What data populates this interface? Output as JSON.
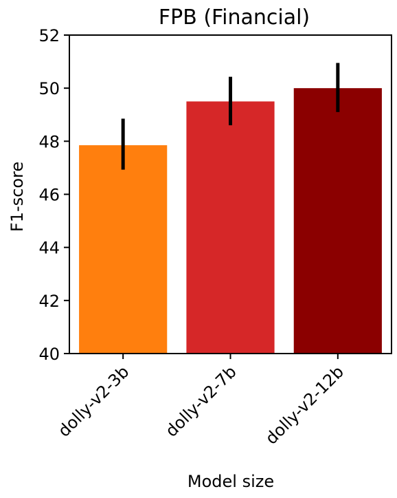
{
  "chart_data": {
    "type": "bar",
    "title": "FPB (Financial)",
    "xlabel": "Model size",
    "ylabel": "F1-score",
    "categories": [
      "dolly-v2-3b",
      "dolly-v2-7b",
      "dolly-v2-12b"
    ],
    "values": [
      47.85,
      49.5,
      50.0
    ],
    "error_low": [
      46.93,
      48.6,
      49.1
    ],
    "error_high": [
      48.85,
      50.43,
      50.95
    ],
    "colors": [
      "#ff7f0e",
      "#d62728",
      "#8b0000"
    ],
    "ylim": [
      40,
      52
    ],
    "yticks": [
      40,
      42,
      44,
      46,
      48,
      50,
      52
    ],
    "grid": false,
    "legend": "none"
  }
}
